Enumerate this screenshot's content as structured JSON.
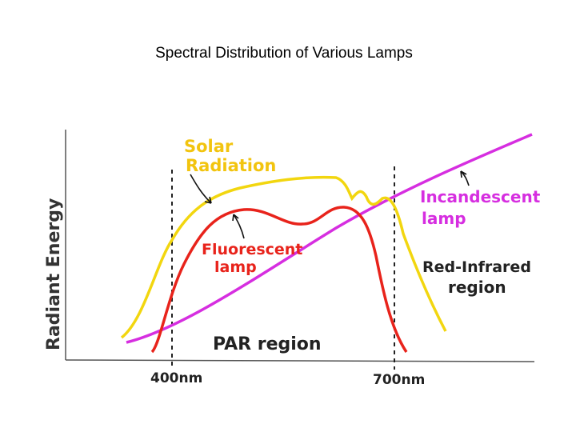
{
  "title": "Spectral Distribution of Various Lamps",
  "chart_data": {
    "type": "line",
    "title": "Spectral Distribution of Various Lamps",
    "ylabel": "Radiant Energy",
    "xlabel": "",
    "grid": false,
    "reference_lines": [
      {
        "x": 400,
        "label": "400nm"
      },
      {
        "x": 700,
        "label": "700nm"
      }
    ],
    "regions": [
      {
        "label": "PAR region"
      },
      {
        "label": "Red-Infrared region",
        "lines": [
          "Red-Infrared",
          "region"
        ]
      }
    ],
    "colors": {
      "solar": "#f2d60f",
      "fluorescent": "#e8231b",
      "incandescent": "#d62ee0",
      "reference": "#222222",
      "axis": "#555555"
    },
    "series": [
      {
        "name": "Solar Radiation",
        "lines": [
          "Solar",
          "Radiation"
        ],
        "key": "solar"
      },
      {
        "name": "Fluorescent lamp",
        "lines": [
          "Fluorescent",
          "lamp"
        ],
        "key": "fluorescent"
      },
      {
        "name": "Incandescent lamp",
        "lines": [
          "Incandescent",
          "lamp"
        ],
        "key": "incandescent"
      }
    ]
  }
}
